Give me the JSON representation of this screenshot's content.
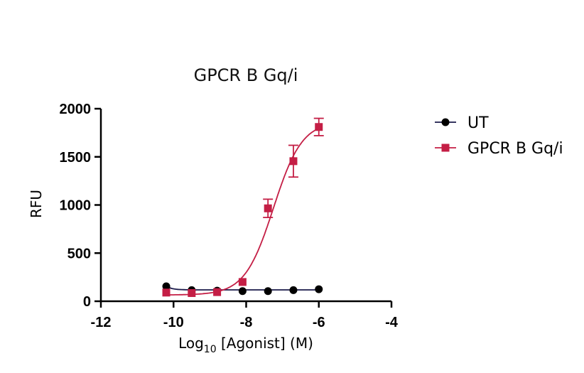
{
  "chart_data": {
    "type": "scatter",
    "title": "GPCR B Gq/i",
    "xlabel_main": "Log",
    "xlabel_sub": "10",
    "xlabel_rest": " [Agonist] (M)",
    "ylabel": "RFU",
    "xlim": [
      -12,
      -4
    ],
    "ylim": [
      0,
      2000
    ],
    "xticks": [
      -12,
      -10,
      -8,
      -6,
      -4
    ],
    "yticks": [
      0,
      500,
      1000,
      1500,
      2000
    ],
    "legend_position": "right",
    "series": [
      {
        "name": "UT",
        "color": "#000000",
        "line_color": "#1a1a4a",
        "marker": "circle",
        "x": [
          -10.2,
          -9.5,
          -8.8,
          -8.1,
          -7.4,
          -6.7,
          -6.0
        ],
        "y": [
          155,
          115,
          110,
          105,
          105,
          115,
          125
        ],
        "error": [
          0,
          0,
          0,
          0,
          0,
          0,
          0
        ],
        "fit": "flat",
        "fit_params": {
          "bottom": 118,
          "top": 118
        }
      },
      {
        "name": "GPCR B Gq/i",
        "color": "#c41e45",
        "line_color": "#c41e45",
        "marker": "square",
        "x": [
          -10.2,
          -9.5,
          -8.8,
          -8.1,
          -7.4,
          -6.7,
          -6.0
        ],
        "y": [
          90,
          85,
          95,
          200,
          965,
          1455,
          1810
        ],
        "error": [
          0,
          0,
          0,
          0,
          95,
          165,
          90
        ],
        "fit": "sigmoid",
        "fit_params": {
          "bottom": 65,
          "top": 1870,
          "logEC50": -7.25,
          "hill": 1.1
        }
      }
    ]
  }
}
